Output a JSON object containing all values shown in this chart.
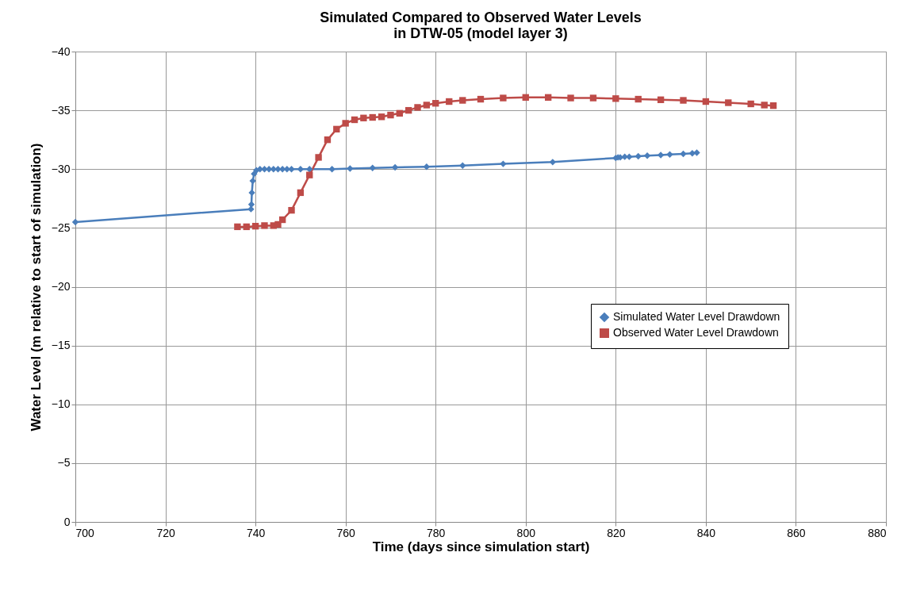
{
  "chart_data": {
    "type": "line",
    "title": "Simulated Compared to Observed Water Levels\nin DTW-05 (model layer 3)",
    "xlabel": "Time (days since simulation start)",
    "ylabel": "Water Level (m relative to start of simulation)",
    "xlim": [
      700,
      880
    ],
    "xticks": [
      700,
      720,
      740,
      760,
      780,
      800,
      820,
      840,
      860,
      880
    ],
    "ylim": [
      0,
      -40
    ],
    "yticks": [
      0,
      -5,
      -10,
      -15,
      -20,
      -25,
      -30,
      -35,
      -40
    ],
    "grid": true,
    "legend": "right",
    "series": [
      {
        "name": "Simulated Water Level Drawdown",
        "color": "#4a7ebb",
        "marker": "diamond",
        "x": [
          700,
          739,
          739.1,
          739.2,
          739.4,
          739.7,
          740.2,
          741,
          742,
          743,
          744,
          745,
          746,
          747,
          748,
          750,
          752,
          757,
          761,
          766,
          771,
          778,
          786,
          795,
          806,
          820,
          820.5,
          821,
          822,
          823,
          825,
          827,
          830,
          832,
          835,
          837,
          838
        ],
        "values": [
          -25.5,
          -26.6,
          -27,
          -28,
          -29,
          -29.6,
          -29.9,
          -30,
          -30,
          -30,
          -30,
          -30,
          -30,
          -30,
          -30,
          -30,
          -30,
          -30,
          -30.05,
          -30.1,
          -30.15,
          -30.2,
          -30.3,
          -30.45,
          -30.6,
          -30.95,
          -31,
          -31,
          -31.05,
          -31.05,
          -31.1,
          -31.15,
          -31.2,
          -31.25,
          -31.3,
          -31.35,
          -31.4
        ]
      },
      {
        "name": "Observed Water Level Drawdown",
        "color": "#be4b48",
        "marker": "square",
        "x": [
          736,
          738,
          740,
          742,
          744,
          745,
          746,
          748,
          750,
          752,
          754,
          756,
          758,
          760,
          762,
          764,
          766,
          768,
          770,
          772,
          774,
          776,
          778,
          780,
          783,
          786,
          790,
          795,
          800,
          805,
          810,
          815,
          820,
          825,
          830,
          835,
          840,
          845,
          850,
          853,
          855
        ],
        "values": [
          -25.1,
          -25.1,
          -25.15,
          -25.2,
          -25.2,
          -25.3,
          -25.7,
          -26.5,
          -28,
          -29.5,
          -31,
          -32.5,
          -33.4,
          -33.9,
          -34.2,
          -34.35,
          -34.4,
          -34.45,
          -34.6,
          -34.75,
          -35,
          -35.25,
          -35.45,
          -35.6,
          -35.75,
          -35.85,
          -35.95,
          -36.05,
          -36.1,
          -36.1,
          -36.05,
          -36.05,
          -36,
          -35.95,
          -35.9,
          -35.85,
          -35.75,
          -35.65,
          -35.55,
          -35.45,
          -35.4
        ]
      }
    ]
  }
}
